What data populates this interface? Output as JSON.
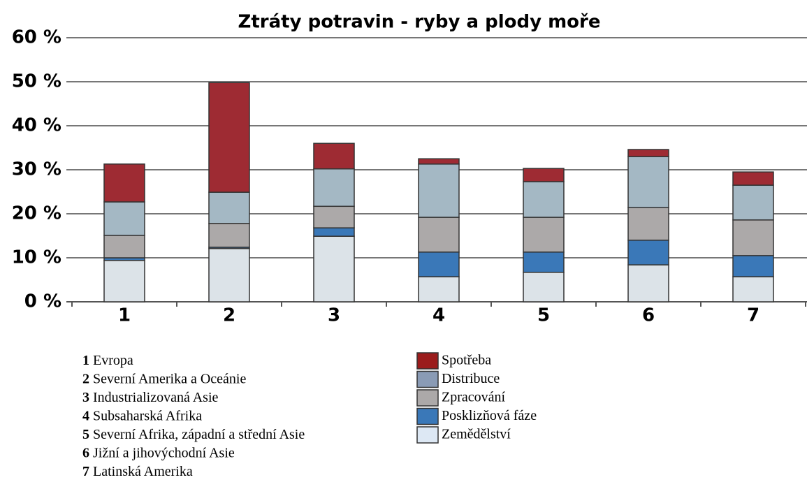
{
  "chart_data": {
    "type": "stacked_bar",
    "title": "Ztráty potravin - ryby a plody moře",
    "categories": [
      "1",
      "2",
      "3",
      "4",
      "5",
      "6",
      "7"
    ],
    "category_names": [
      "Evropa",
      "Severní Amerika a Oceánie",
      "Industrializovaná Asie",
      "Subsaharská Afrika",
      "Severní Afrika, západní a střední Asie",
      "Jižní a jihovýchodní Asie",
      "Latinská Amerika"
    ],
    "series": [
      {
        "name": "Zemědělství",
        "color": "#dce3e8",
        "legend_color": "#dde8f4",
        "values": [
          9.4,
          12.1,
          14.9,
          5.7,
          6.7,
          8.4,
          5.7
        ]
      },
      {
        "name": "Posklizňová fáze",
        "color": "#3a78b8",
        "legend_color": "#3a78b8",
        "values": [
          0.6,
          0.3,
          1.9,
          5.6,
          4.6,
          5.6,
          4.8
        ]
      },
      {
        "name": "Zpracování",
        "color": "#aca9a9",
        "legend_color": "#aca9a9",
        "values": [
          5.1,
          5.4,
          4.9,
          7.9,
          7.9,
          7.4,
          8.1
        ]
      },
      {
        "name": "Distribuce",
        "color": "#a4b8c4",
        "legend_color": "#8a9bb5",
        "values": [
          7.6,
          7.1,
          8.5,
          12.1,
          8.1,
          11.6,
          7.9
        ]
      },
      {
        "name": "Spotřeba",
        "color": "#9e2b33",
        "legend_color": "#9b1c1c",
        "values": [
          8.6,
          24.9,
          5.8,
          1.2,
          3.0,
          1.6,
          3.0
        ]
      }
    ],
    "ylim": [
      0,
      60
    ],
    "yticks": [
      {
        "value": 0,
        "label": "0 %"
      },
      {
        "value": 10,
        "label": "10 %"
      },
      {
        "value": 20,
        "label": "20 %"
      },
      {
        "value": 30,
        "label": "30 %"
      },
      {
        "value": 40,
        "label": "40 %"
      },
      {
        "value": 50,
        "label": "50 %"
      },
      {
        "value": 60,
        "label": "60 %"
      }
    ],
    "grid": true
  }
}
